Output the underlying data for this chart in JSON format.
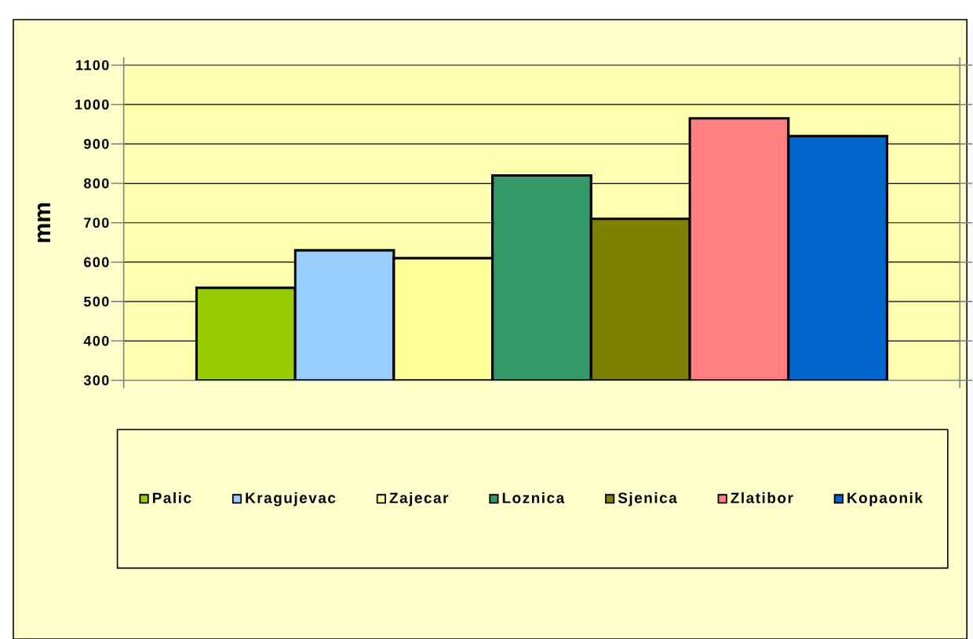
{
  "chart_data": {
    "type": "bar",
    "ylabel": "mm",
    "categories": [
      null
    ],
    "series": [
      {
        "name": "Palic",
        "color": "#99cc00",
        "values": [
          535
        ]
      },
      {
        "name": "Kragujevac",
        "color": "#99ccff",
        "values": [
          630
        ]
      },
      {
        "name": "Zajecar",
        "color": "#ffff99",
        "values": [
          610
        ]
      },
      {
        "name": "Loznica",
        "color": "#339966",
        "values": [
          820
        ]
      },
      {
        "name": "Sjenica",
        "color": "#808000",
        "values": [
          710
        ]
      },
      {
        "name": "Zlatibor",
        "color": "#ff8080",
        "values": [
          965
        ]
      },
      {
        "name": "Kopaonik",
        "color": "#0066cc",
        "values": [
          920
        ]
      }
    ],
    "ylim": [
      300,
      1100
    ],
    "yticks": [
      300,
      400,
      500,
      600,
      700,
      800,
      900,
      1000,
      1100
    ],
    "grid": "y",
    "legend": "bottom"
  }
}
